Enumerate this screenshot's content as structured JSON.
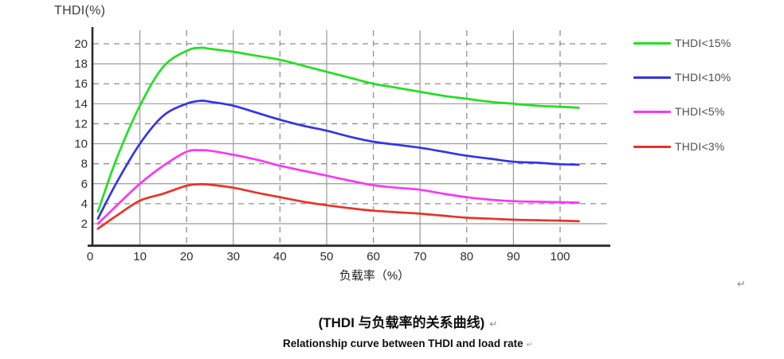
{
  "page": {
    "background": "#ffffff"
  },
  "y_axis_title": "THDI(%)",
  "x_axis_title": "负载率（%）",
  "captions": {
    "chinese": "(THDI 与负载率的关系曲线)",
    "english": "Relationship curve between THDI and load rate",
    "return_mark": "↵"
  },
  "legend": [
    {
      "label": "THDI<15%",
      "color": "#21e021"
    },
    {
      "label": "THDI<10%",
      "color": "#3434e8"
    },
    {
      "label": "THDI<5%",
      "color": "#f837f8"
    },
    {
      "label": "THDI<3%",
      "color": "#ea3328"
    }
  ],
  "colors": {
    "grid_solid": "#9a9a9a",
    "grid_dashed": "#8f8f8f",
    "axis_spine": "#2b2b2b",
    "tick_label": "#2f2f2f"
  },
  "chart_data": {
    "type": "line",
    "title": "Relationship curve between THDI and load rate",
    "xlabel": "负载率（%）",
    "ylabel": "THDI(%)",
    "xlim": [
      0,
      110
    ],
    "ylim": [
      0,
      21.5
    ],
    "x_ticks": [
      0,
      10,
      20,
      30,
      40,
      50,
      60,
      70,
      80,
      90,
      100
    ],
    "y_ticks": [
      2,
      4,
      6,
      8,
      10,
      12,
      14,
      16,
      18,
      20
    ],
    "grid": {
      "y_solid": [
        2,
        6,
        10,
        14,
        18
      ],
      "y_dashed": [
        4,
        8,
        12,
        16,
        20
      ],
      "x_solid": [
        10,
        30,
        50,
        70,
        90
      ],
      "x_dashed": [
        20,
        40,
        60,
        80,
        100
      ]
    },
    "legend_position": "right",
    "x": [
      1,
      5,
      10,
      15,
      20,
      23,
      25,
      30,
      35,
      40,
      45,
      50,
      55,
      60,
      65,
      70,
      75,
      80,
      85,
      90,
      95,
      100,
      104
    ],
    "series": [
      {
        "id": "thdi-15",
        "name": "THDI<15%",
        "color": "#21e021",
        "values": [
          3.2,
          8.5,
          13.8,
          17.7,
          19.3,
          19.6,
          19.5,
          19.2,
          18.8,
          18.4,
          17.8,
          17.2,
          16.6,
          16.0,
          15.6,
          15.2,
          14.8,
          14.5,
          14.2,
          14.0,
          13.8,
          13.7,
          13.6
        ]
      },
      {
        "id": "thdi-10",
        "name": "THDI<10%",
        "color": "#3434e8",
        "values": [
          2.5,
          6.1,
          10.0,
          12.8,
          14.0,
          14.3,
          14.2,
          13.8,
          13.1,
          12.4,
          11.8,
          11.3,
          10.7,
          10.2,
          9.9,
          9.6,
          9.2,
          8.8,
          8.5,
          8.2,
          8.1,
          7.95,
          7.9
        ]
      },
      {
        "id": "thdi-5",
        "name": "THDI<5%",
        "color": "#f837f8",
        "values": [
          2.0,
          3.8,
          6.0,
          7.8,
          9.2,
          9.35,
          9.3,
          8.9,
          8.4,
          7.8,
          7.3,
          6.8,
          6.3,
          5.85,
          5.6,
          5.4,
          5.0,
          4.65,
          4.4,
          4.25,
          4.2,
          4.15,
          4.1
        ]
      },
      {
        "id": "thdi-3",
        "name": "THDI<3%",
        "color": "#ea3328",
        "values": [
          1.5,
          2.8,
          4.3,
          5.0,
          5.8,
          5.95,
          5.9,
          5.6,
          5.1,
          4.65,
          4.2,
          3.85,
          3.55,
          3.3,
          3.15,
          3.0,
          2.8,
          2.6,
          2.5,
          2.4,
          2.35,
          2.3,
          2.25
        ]
      }
    ]
  }
}
